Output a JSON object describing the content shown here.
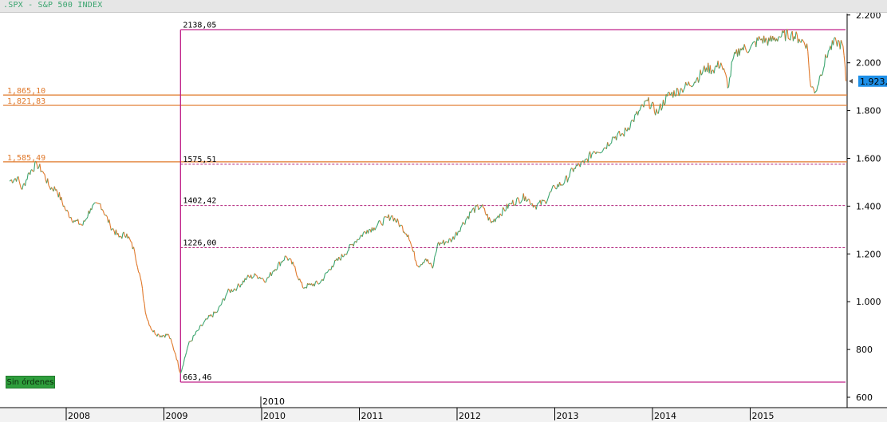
{
  "window": {
    "title": ".SPX - S&P 500 INDEX"
  },
  "button": {
    "sin_ordenes": "Sin órdenes"
  },
  "colors": {
    "up": "#3aa56f",
    "down": "#e0782a",
    "level_line": "#e0782a",
    "fib_line": "#b0207a",
    "box_line": "#c0208a",
    "price_tag": "#1e90e8",
    "title_bg": "#e6e6e6"
  },
  "chart_data": {
    "type": "line",
    "title": ".SPX - S&P 500 INDEX",
    "xlabel": "",
    "ylabel": "",
    "ylim": [
      560,
      2220
    ],
    "xlim": [
      2007.42,
      2015.98
    ],
    "y_axis_position": "right",
    "y_ticks": [
      {
        "value": 600,
        "label": "600"
      },
      {
        "value": 800,
        "label": "800"
      },
      {
        "value": 1000,
        "label": "1.000"
      },
      {
        "value": 1200,
        "label": "1.200"
      },
      {
        "value": 1400,
        "label": "1.400"
      },
      {
        "value": 1600,
        "label": "1.600"
      },
      {
        "value": 1800,
        "label": "1.800"
      },
      {
        "value": 2000,
        "label": "2.000"
      },
      {
        "value": 2200,
        "label": "2.200"
      }
    ],
    "x_ticks": [
      {
        "value": 2008,
        "label": "2008"
      },
      {
        "value": 2009,
        "label": "2009"
      },
      {
        "value": 2010,
        "label": "2010"
      },
      {
        "value": 2011,
        "label": "2011"
      },
      {
        "value": 2012,
        "label": "2012"
      },
      {
        "value": 2013,
        "label": "2013"
      },
      {
        "value": 2014,
        "label": "2014"
      },
      {
        "value": 2015,
        "label": "2015"
      }
    ],
    "axis_annotation": {
      "value": 2010,
      "label": "2010"
    },
    "last_price": {
      "value": 1923,
      "label": "1.923,"
    },
    "horizontal_levels": [
      {
        "value": 1865.1,
        "label": "1,865,10"
      },
      {
        "value": 1821.83,
        "label": "1,821,83"
      },
      {
        "value": 1585.49,
        "label": "1,585,49"
      }
    ],
    "fib_box": {
      "x_start": 2009.17,
      "x_end": 2015.98,
      "high": 2138.05,
      "low": 663.46,
      "high_label": "2138,05",
      "low_label": "663,46"
    },
    "fib_levels": [
      {
        "value": 1575.51,
        "label": "1575,51"
      },
      {
        "value": 1402.42,
        "label": "1402,42"
      },
      {
        "value": 1226.0,
        "label": "1226,00"
      }
    ],
    "series": [
      {
        "x": [
          2007.42,
          2007.5,
          2007.55,
          2007.62,
          2007.7,
          2007.76,
          2007.83,
          2007.9,
          2008.0,
          2008.08,
          2008.17,
          2008.25,
          2008.35,
          2008.45,
          2008.54,
          2008.62,
          2008.7,
          2008.76,
          2008.82,
          2008.88,
          2008.95,
          2009.05,
          2009.12,
          2009.17,
          2009.25,
          2009.35,
          2009.45,
          2009.55,
          2009.65,
          2009.75,
          2009.85,
          2009.95,
          2010.05,
          2010.12,
          2010.25,
          2010.33,
          2010.42,
          2010.5,
          2010.6,
          2010.72,
          2010.85,
          2010.95,
          2011.08,
          2011.15,
          2011.22,
          2011.33,
          2011.42,
          2011.5,
          2011.55,
          2011.6,
          2011.68,
          2011.75,
          2011.8,
          2011.88,
          2011.95,
          2012.05,
          2012.15,
          2012.25,
          2012.35,
          2012.42,
          2012.55,
          2012.7,
          2012.8,
          2012.9,
          2013.0,
          2013.1,
          2013.2,
          2013.3,
          2013.4,
          2013.5,
          2013.6,
          2013.7,
          2013.8,
          2013.95,
          2014.05,
          2014.15,
          2014.3,
          2014.45,
          2014.55,
          2014.62,
          2014.7,
          2014.78,
          2014.82,
          2014.9,
          2015.0,
          2015.1,
          2015.2,
          2015.3,
          2015.42,
          2015.5,
          2015.58,
          2015.62,
          2015.67,
          2015.72,
          2015.8,
          2015.88,
          2015.95,
          2015.98
        ],
        "values": [
          1505,
          1520,
          1470,
          1540,
          1575,
          1545,
          1480,
          1470,
          1380,
          1340,
          1320,
          1390,
          1410,
          1320,
          1270,
          1285,
          1210,
          1100,
          940,
          880,
          860,
          860,
          780,
          700,
          820,
          880,
          930,
          960,
          1040,
          1060,
          1100,
          1110,
          1090,
          1130,
          1190,
          1150,
          1060,
          1070,
          1080,
          1150,
          1200,
          1250,
          1300,
          1310,
          1330,
          1360,
          1320,
          1280,
          1210,
          1150,
          1180,
          1140,
          1240,
          1250,
          1260,
          1320,
          1380,
          1400,
          1330,
          1360,
          1410,
          1440,
          1400,
          1420,
          1480,
          1500,
          1560,
          1580,
          1630,
          1640,
          1690,
          1700,
          1760,
          1840,
          1790,
          1860,
          1890,
          1930,
          1980,
          1970,
          2000,
          1900,
          2010,
          2060,
          2060,
          2100,
          2090,
          2110,
          2120,
          2100,
          2080,
          1900,
          1880,
          1950,
          2050,
          2090,
          2070,
          1923
        ]
      }
    ]
  }
}
